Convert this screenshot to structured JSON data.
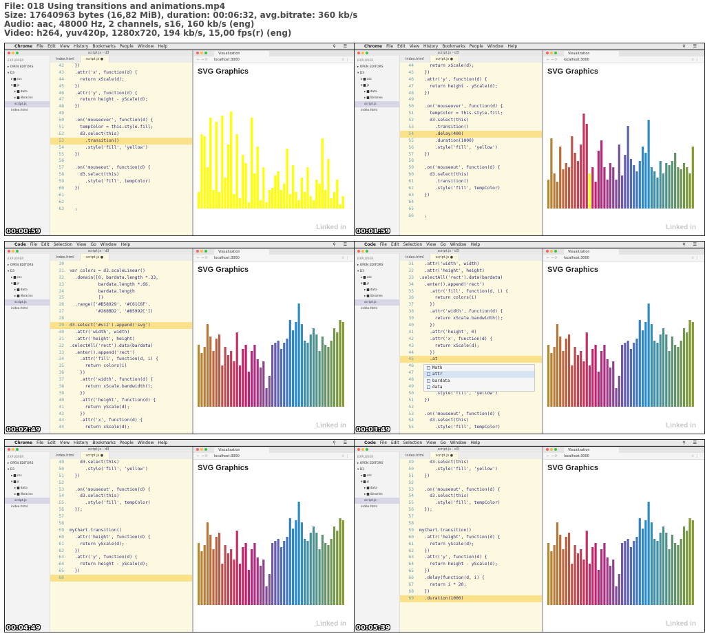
{
  "header": {
    "line1": "File: 018 Using transitions and animations.mp4",
    "line2": "Size: 17640963 bytes (16,82 MiB), duration: 00:06:32, avg.bitrate: 360 kb/s",
    "line3": "Audio: aac, 48000 Hz, 2 channels, s16, 160 kb/s (eng)",
    "line4": "Video: h264, yuv420p, 1280x720, 194 kb/s, 15,00 fps(r) (eng)"
  },
  "common": {
    "explorer_title": "EXPLORER",
    "open_editors": "▸ OPEN EDITORS",
    "folder_d3": "▾ D3",
    "folder_css": "▸ ▆ css",
    "folder_js": "▾ ▆ js",
    "folder_data": "▸ ▆ data",
    "folder_libraries": "▸ ▆ libraries",
    "file_script": "script.js",
    "file_index": "index.html",
    "tab_index": "index.html",
    "tab_script": "script.js  ●",
    "editor_title": "script.js - d3",
    "browser_tab": "Visualization",
    "url": "localhost:3000",
    "page_heading": "SVG Graphics",
    "watermark": "Linked in",
    "menu_apple": "",
    "menu_common": [
      "File",
      "Edit",
      "View",
      "History",
      "Bookmarks",
      "People",
      "Window",
      "Help"
    ],
    "menu_code": [
      "File",
      "Edit",
      "Selection",
      "View",
      "Go",
      "Window",
      "Help"
    ]
  },
  "tiles": [
    {
      "app": "Chrome",
      "timestamp": "00:00:59",
      "lines": [
        {
          "n": "42",
          "t": "  })"
        },
        {
          "n": "43",
          "t": "  .attr('x', function(d) {"
        },
        {
          "n": "44",
          "t": "    return xScale(d);"
        },
        {
          "n": "45",
          "t": "  })"
        },
        {
          "n": "46",
          "t": "  .attr('y', function(d) {"
        },
        {
          "n": "47",
          "t": "    return height - yScale(d);"
        },
        {
          "n": "48",
          "t": "  })"
        },
        {
          "n": "49",
          "t": ""
        },
        {
          "n": "50",
          "t": "  .on('mouseover', function(d) {"
        },
        {
          "n": "51",
          "t": "    tempColor = this.style.fill;"
        },
        {
          "n": "52",
          "t": "    d3.select(this)"
        },
        {
          "n": "53",
          "t": "      .transition()",
          "hl": true
        },
        {
          "n": "54",
          "t": "      .style('fill', 'yellow')"
        },
        {
          "n": "55",
          "t": "  })"
        },
        {
          "n": "56",
          "t": ""
        },
        {
          "n": "57",
          "t": "  .on('mouseout', function(d) {"
        },
        {
          "n": "58",
          "t": "    d3.select(this)"
        },
        {
          "n": "59",
          "t": "      .style('fill', tempColor)"
        },
        {
          "n": "60",
          "t": "  })"
        },
        {
          "n": "61",
          "t": ""
        },
        {
          "n": "62",
          "t": ""
        },
        {
          "n": "63",
          "t": "  ;"
        }
      ]
    },
    {
      "app": "Chrome",
      "timestamp": "00:01:59",
      "lines": [
        {
          "n": "44",
          "t": "    return xScale(d);"
        },
        {
          "n": "45",
          "t": "  })"
        },
        {
          "n": "46",
          "t": "  .attr('y', function(d) {"
        },
        {
          "n": "47",
          "t": "    return height - yScale(d);"
        },
        {
          "n": "48",
          "t": "  })"
        },
        {
          "n": "49",
          "t": ""
        },
        {
          "n": "50",
          "t": "  .on('mouseover', function(d) {"
        },
        {
          "n": "51",
          "t": "    tempColor = this.style.fill;"
        },
        {
          "n": "52",
          "t": "    d3.select(this)"
        },
        {
          "n": "53",
          "t": "      .transition()"
        },
        {
          "n": "54",
          "t": "      .delay(400)",
          "hl": true
        },
        {
          "n": "55",
          "t": "      .duration(1000)"
        },
        {
          "n": "56",
          "t": "      .style('fill', 'yellow')"
        },
        {
          "n": "57",
          "t": "  })"
        },
        {
          "n": "58",
          "t": ""
        },
        {
          "n": "59",
          "t": "  .on('mouseout', function(d) {"
        },
        {
          "n": "60",
          "t": "    d3.select(this)"
        },
        {
          "n": "61",
          "t": "      .transition()"
        },
        {
          "n": "62",
          "t": "      .style('fill', tempColor)"
        },
        {
          "n": "63",
          "t": "  })"
        },
        {
          "n": "64",
          "t": ""
        },
        {
          "n": "65",
          "t": ""
        },
        {
          "n": "66",
          "t": "  ;"
        }
      ]
    },
    {
      "app": "Code",
      "timestamp": "00:02:49",
      "lines": [
        {
          "n": "20",
          "t": ""
        },
        {
          "n": "21",
          "t": "var colors = d3.scaleLinear()"
        },
        {
          "n": "22",
          "t": "  .domain([0, bardata.length *.33,"
        },
        {
          "n": "23",
          "t": "           bardata.length *.66,"
        },
        {
          "n": "24",
          "t": "           bardata.length"
        },
        {
          "n": "25",
          "t": "           ])"
        },
        {
          "n": "26",
          "t": "  .range(['#B58929', '#C61C6F',"
        },
        {
          "n": "27",
          "t": "          '#268BD2', '#85992C'])"
        },
        {
          "n": "28",
          "t": ""
        },
        {
          "n": "29",
          "t": "d3.select('#viz').append('svg')",
          "hl": true
        },
        {
          "n": "30",
          "t": "  .attr('width', width)"
        },
        {
          "n": "31",
          "t": "  .attr('height', height)"
        },
        {
          "n": "32",
          "t": ".selectAll('rect').data(bardata)"
        },
        {
          "n": "33",
          "t": "  .enter().append('rect')"
        },
        {
          "n": "34",
          "t": "    .attr('fill', function(d, i) {"
        },
        {
          "n": "35",
          "t": "      return colors(i)"
        },
        {
          "n": "36",
          "t": "    })"
        },
        {
          "n": "37",
          "t": "    .attr('width', function(d) {"
        },
        {
          "n": "38",
          "t": "      return xScale.bandwidth();"
        },
        {
          "n": "39",
          "t": "    })"
        },
        {
          "n": "40",
          "t": "    .attr('height', function(d) {"
        },
        {
          "n": "41",
          "t": "      return yScale(d);"
        },
        {
          "n": "42",
          "t": "    })"
        },
        {
          "n": "43",
          "t": "    .attr('x', function(d) {"
        },
        {
          "n": "44",
          "t": "      return xScale(d);"
        }
      ]
    },
    {
      "app": "Code",
      "timestamp": "00:03:49",
      "lines": [
        {
          "n": "31",
          "t": "  .attr('width', width)"
        },
        {
          "n": "32",
          "t": "  .attr('height', height)"
        },
        {
          "n": "33",
          "t": ".selectAll('rect').data(bardata)"
        },
        {
          "n": "34",
          "t": "  .enter().append('rect')"
        },
        {
          "n": "35",
          "t": "    .attr('fill', function(d, i) {"
        },
        {
          "n": "36",
          "t": "      return colors(i)"
        },
        {
          "n": "37",
          "t": "    })"
        },
        {
          "n": "38",
          "t": "    .attr('width', function(d) {"
        },
        {
          "n": "39",
          "t": "      return xScale.bandwidth();"
        },
        {
          "n": "40",
          "t": "    })"
        },
        {
          "n": "41",
          "t": "    .attr('height', 0)"
        },
        {
          "n": "42",
          "t": "    .attr('x', function(d) {"
        },
        {
          "n": "43",
          "t": "      return xScale(d);"
        },
        {
          "n": "44",
          "t": "    })"
        },
        {
          "n": "45",
          "t": "    .at",
          "hl": true
        },
        {
          "n": "46",
          "t": ""
        },
        {
          "n": "47",
          "t": ""
        },
        {
          "n": "48",
          "t": ""
        },
        {
          "n": "49",
          "t": ""
        },
        {
          "n": "50",
          "t": "      .style('fill', 'yellow')"
        },
        {
          "n": "51",
          "t": "  })"
        },
        {
          "n": "52",
          "t": ""
        },
        {
          "n": "53",
          "t": "  .on('mouseout', function(d) {"
        },
        {
          "n": "54",
          "t": "    d3.select(this)"
        },
        {
          "n": "55",
          "t": "      .style('fill', tempColor)"
        }
      ],
      "autocomplete": [
        "Math",
        "attr",
        "bardata",
        "data"
      ]
    },
    {
      "app": "Chrome",
      "timestamp": "00:04:49",
      "lines": [
        {
          "n": "49",
          "t": "    d3.select(this)"
        },
        {
          "n": "50",
          "t": "      .style('fill', 'yellow')"
        },
        {
          "n": "51",
          "t": "  })"
        },
        {
          "n": "52",
          "t": ""
        },
        {
          "n": "53",
          "t": "  .on('mouseout', function(d) {"
        },
        {
          "n": "54",
          "t": "    d3.select(this)"
        },
        {
          "n": "55",
          "t": "      .style('fill', tempColor)"
        },
        {
          "n": "56",
          "t": "  });"
        },
        {
          "n": "57",
          "t": ""
        },
        {
          "n": "58",
          "t": ""
        },
        {
          "n": "59",
          "t": "myChart.transition()"
        },
        {
          "n": "60",
          "t": "  .attr('height', function(d) {"
        },
        {
          "n": "61",
          "t": "    return yScale(d);"
        },
        {
          "n": "62",
          "t": "  })"
        },
        {
          "n": "63",
          "t": "  .attr('y', function(d) {"
        },
        {
          "n": "64",
          "t": "    return height - yScale(d);"
        },
        {
          "n": "65",
          "t": "  })"
        },
        {
          "n": "66",
          "t": "",
          "hl": true
        }
      ]
    },
    {
      "app": "Code",
      "timestamp": "00:05:39",
      "lines": [
        {
          "n": "49",
          "t": "    d3.select(this)"
        },
        {
          "n": "50",
          "t": "      .style('fill', 'yellow')"
        },
        {
          "n": "51",
          "t": "  })"
        },
        {
          "n": "52",
          "t": ""
        },
        {
          "n": "53",
          "t": "  .on('mouseout', function(d) {"
        },
        {
          "n": "54",
          "t": "    d3.select(this)"
        },
        {
          "n": "55",
          "t": "      .style('fill', tempColor)"
        },
        {
          "n": "56",
          "t": "  });"
        },
        {
          "n": "57",
          "t": ""
        },
        {
          "n": "58",
          "t": ""
        },
        {
          "n": "59",
          "t": "myChart.transition()"
        },
        {
          "n": "60",
          "t": "  .attr('height', function(d) {"
        },
        {
          "n": "61",
          "t": "    return yScale(d);"
        },
        {
          "n": "62",
          "t": "  })"
        },
        {
          "n": "63",
          "t": "  .attr('y', function(d) {"
        },
        {
          "n": "64",
          "t": "    return height - yScale(d);"
        },
        {
          "n": "65",
          "t": "  })"
        },
        {
          "n": "66",
          "t": "  .delay(function(d, i) {"
        },
        {
          "n": "67",
          "t": "    return i * 20;"
        },
        {
          "n": "68",
          "t": "  })"
        },
        {
          "n": "69",
          "t": "  .duration(1000)",
          "hl": true
        }
      ]
    }
  ],
  "colors": {
    "palette": [
      "#B58929",
      "#C61C6F",
      "#268BD2",
      "#85992C"
    ],
    "hover": "#ffff00"
  },
  "chart_data": [
    {
      "type": "bar",
      "title": "SVG Graphics",
      "values": [
        16,
        72,
        70,
        40,
        88,
        18,
        84,
        16,
        90,
        30,
        62,
        94,
        14,
        72,
        10,
        52,
        44,
        6,
        88,
        34,
        60,
        8,
        40,
        6,
        18,
        20,
        32,
        36,
        18,
        24,
        58,
        14,
        42,
        16,
        8,
        30,
        16,
        40,
        12,
        8,
        28,
        24,
        68,
        18,
        48,
        10,
        16,
        28,
        4,
        12
      ],
      "highlighted_all": true
    },
    {
      "type": "bar",
      "title": "SVG Graphics",
      "values": [
        28,
        68,
        34,
        26,
        60,
        38,
        44,
        40,
        70,
        54,
        46,
        62,
        92,
        82,
        34,
        40,
        26,
        56,
        66,
        40,
        28,
        44,
        40,
        28,
        62,
        32,
        52,
        80,
        48,
        42,
        36,
        46,
        60,
        54,
        86,
        40,
        36,
        30,
        46,
        34,
        44,
        42,
        46,
        54,
        40,
        38,
        44,
        40,
        34,
        60
      ],
      "highlighted_index": 14
    },
    {
      "type": "bar",
      "title": "SVG Graphics",
      "values": [
        60,
        52,
        58,
        80,
        68,
        54,
        66,
        70,
        40,
        58,
        50,
        54,
        44,
        72,
        40,
        56,
        60,
        34,
        54,
        60,
        46,
        38,
        44,
        18,
        30,
        60,
        62,
        64,
        56,
        62,
        66,
        84,
        74,
        82,
        100,
        80,
        64,
        62,
        70,
        76,
        70,
        54,
        68,
        60,
        58,
        64,
        76,
        72,
        84,
        82
      ]
    },
    {
      "type": "bar",
      "title": "SVG Graphics",
      "values": [
        60,
        52,
        58,
        80,
        68,
        54,
        66,
        70,
        40,
        58,
        50,
        54,
        44,
        72,
        40,
        56,
        60,
        34,
        54,
        60,
        46,
        38,
        44,
        18,
        30,
        60,
        62,
        64,
        56,
        62,
        66,
        84,
        74,
        82,
        100,
        80,
        64,
        62,
        70,
        76,
        70,
        54,
        68,
        60,
        58,
        64,
        76,
        72,
        84,
        82
      ]
    },
    {
      "type": "bar",
      "title": "SVG Graphics",
      "values": [
        60,
        52,
        58,
        80,
        68,
        54,
        66,
        70,
        40,
        58,
        50,
        54,
        44,
        72,
        40,
        56,
        60,
        34,
        54,
        60,
        46,
        38,
        44,
        18,
        30,
        60,
        62,
        64,
        56,
        62,
        66,
        84,
        74,
        82,
        100,
        80,
        64,
        62,
        70,
        76,
        70,
        54,
        68,
        60,
        58,
        64,
        76,
        72,
        84,
        82
      ]
    },
    {
      "type": "bar",
      "title": "SVG Graphics",
      "values": [
        60,
        52,
        58,
        80,
        68,
        54,
        66,
        70,
        40,
        58,
        50,
        54,
        44,
        72,
        40,
        56,
        60,
        34,
        54,
        60,
        46,
        38,
        44,
        18,
        30,
        60,
        62,
        64,
        56,
        62,
        66,
        84,
        74,
        82,
        100,
        80,
        64,
        62,
        70,
        76,
        70,
        54,
        68,
        60,
        58,
        64,
        76,
        72,
        84,
        82
      ]
    }
  ]
}
